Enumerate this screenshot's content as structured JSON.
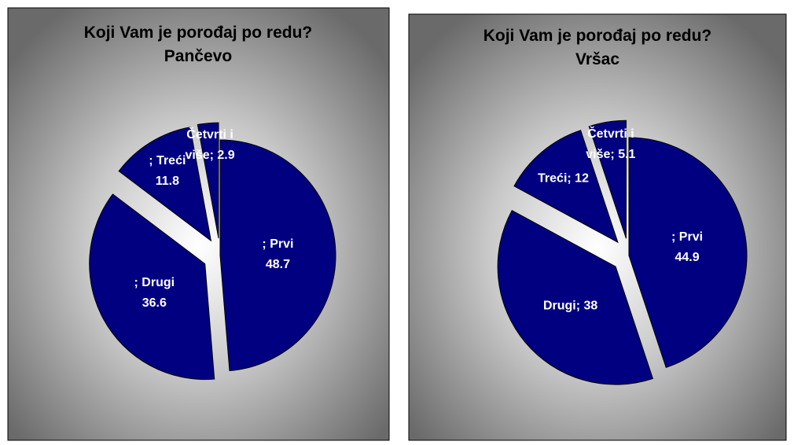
{
  "chart_data": [
    {
      "type": "pie",
      "title": "Koji Vam je porođaj po redu?",
      "subtitle": "Pančevo",
      "values": [
        48.7,
        36.6,
        11.8,
        2.9
      ],
      "value_labels": [
        "; Prvi\n48.7",
        "; Drugi\n36.6",
        "; Treći\n11.8",
        "Četvrti i\nviše; 2.9"
      ],
      "color": "#000080"
    },
    {
      "type": "pie",
      "title": "Koji Vam je porođaj po redu?",
      "subtitle": "Vršac",
      "values": [
        44.9,
        38,
        12,
        5.1
      ],
      "value_labels": [
        "; Prvi\n44.9",
        "Drugi; 38",
        "Treći; 12",
        "Četvrti i\nviše; 5.1"
      ],
      "color": "#000080"
    }
  ]
}
